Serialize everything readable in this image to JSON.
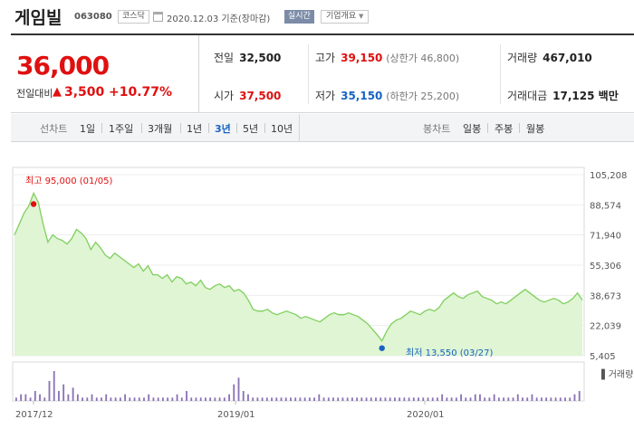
{
  "header": {
    "name": "게임빌",
    "code": "063080",
    "market": "코스닥",
    "date": "2020.12.03 기준(장마감)",
    "realtime": "실시간",
    "company_btn": "기업개요"
  },
  "quote": {
    "price": "36,000",
    "change_label": "전일대비",
    "change": "3,500",
    "change_pct": "+10.77%",
    "prev_label": "전일",
    "prev": "32,500",
    "open_label": "시가",
    "open": "37,500",
    "high_label": "고가",
    "high": "39,150",
    "upper_limit": "(상한가 46,800)",
    "low_label": "저가",
    "low": "35,150",
    "lower_limit": "(하한가 25,200)",
    "volume_label": "거래량",
    "volume": "467,010",
    "amount_label": "거래대금",
    "amount": "17,125 백만"
  },
  "tabs": {
    "line_label": "선차트",
    "periods": [
      "1일",
      "1주일",
      "3개월",
      "1년",
      "3년",
      "5년",
      "10년"
    ],
    "active_period": "3년",
    "candle_label": "봉차트",
    "candles": [
      "일봉",
      "주봉",
      "월봉"
    ]
  },
  "colors": {
    "up": "#e01010",
    "down": "#1763c4",
    "line": "#7fcf5e",
    "fill": "#dff5d3",
    "volume": "#8a72b5"
  },
  "chart_data": {
    "type": "area",
    "y_ticks": [
      "105,208",
      "88,574",
      "71,940",
      "55,306",
      "38,673",
      "22,039",
      "5,405"
    ],
    "ylim": [
      5405,
      105208
    ],
    "x_ticks": [
      "2017/12",
      "2019/01",
      "2020/01"
    ],
    "high_label": "최고 95,000 (01/05)",
    "low_label": "최저 13,550 (03/27)",
    "volume_legend": "거래량",
    "series": [
      {
        "values": [
          72000,
          78000,
          84000,
          88000,
          95000,
          90000,
          78000,
          68000,
          72000,
          70000,
          69000,
          67000,
          70000,
          75000,
          73000,
          70000,
          64000,
          68000,
          65000,
          61000,
          59000,
          62000,
          60000,
          58000,
          56000,
          54000,
          56000,
          52000,
          55000,
          50000,
          50000,
          48000,
          50000,
          46000,
          49000,
          48000,
          45000,
          46000,
          44000,
          47000,
          43000,
          42000,
          44000,
          45000,
          43000,
          44000,
          41000,
          42000,
          40000,
          36000,
          31000,
          30000,
          30000,
          31000,
          29000,
          28000,
          29000,
          30000,
          29000,
          28000,
          26000,
          27000,
          26000,
          25000,
          24000,
          26000,
          28000,
          29000,
          28000,
          28000,
          29000,
          28000,
          27000,
          25000,
          23000,
          20000,
          17000,
          13550,
          19000,
          23000,
          25000,
          26000,
          28000,
          30000,
          29000,
          28000,
          30000,
          31000,
          30000,
          32000,
          36000,
          38000,
          40000,
          38000,
          37000,
          39000,
          40000,
          41000,
          38000,
          37000,
          36000,
          34000,
          35000,
          34000,
          36000,
          38000,
          40000,
          42000,
          40000,
          38000,
          36000,
          35000,
          36000,
          37000,
          36000,
          34000,
          35000,
          37000,
          40000,
          36000
        ]
      }
    ],
    "volume": [
      1,
      2,
      2,
      1,
      3,
      2,
      1,
      6,
      9,
      3,
      5,
      2,
      4,
      2,
      1,
      1,
      2,
      1,
      1,
      2,
      1,
      1,
      1,
      2,
      1,
      1,
      1,
      1,
      2,
      1,
      1,
      1,
      1,
      1,
      2,
      1,
      3,
      1,
      1,
      1,
      1,
      1,
      1,
      1,
      1,
      2,
      5,
      7,
      3,
      2,
      1,
      1,
      1,
      1,
      1,
      1,
      1,
      1,
      1,
      1,
      1,
      1,
      1,
      1,
      2,
      1,
      1,
      1,
      1,
      1,
      1,
      1,
      1,
      1,
      1,
      1,
      1,
      1,
      1,
      1,
      1,
      1,
      1,
      1,
      1,
      1,
      1,
      1,
      1,
      1,
      2,
      1,
      1,
      1,
      2,
      1,
      1,
      2,
      2,
      1,
      1,
      2,
      1,
      1,
      1,
      1,
      2,
      1,
      1,
      2,
      1,
      1,
      1,
      1,
      1,
      1,
      1,
      1,
      2,
      3
    ]
  }
}
